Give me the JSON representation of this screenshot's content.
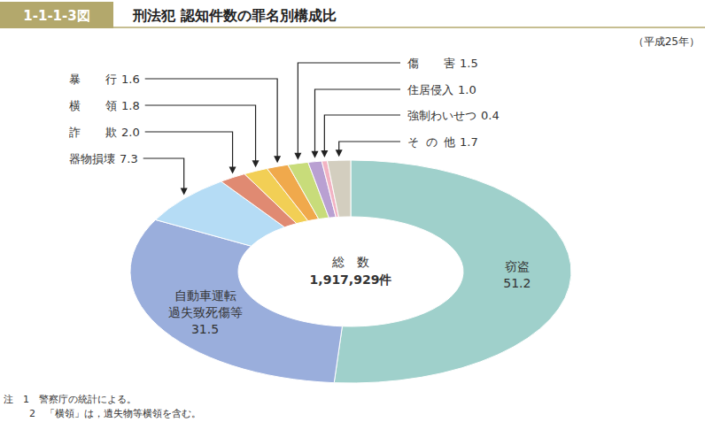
{
  "chart_data": {
    "type": "pie",
    "figure_label": "1-1-1-3図",
    "title": "刑法犯 認知件数の罪名別構成比",
    "subtitle": "（平成25年）",
    "annotations": [
      "総　数",
      "1,917,929件"
    ],
    "notes": [
      "注　1　警察庁の統計による。",
      "2　「横領」は，遺失物等横領を含む。"
    ],
    "categories": [
      "窃盗",
      "自動車運転過失致死傷等",
      "器物損壊",
      "詐欺",
      "横領",
      "暴行",
      "傷害",
      "住居侵入",
      "強制わいせつ",
      "その他"
    ],
    "values": [
      51.2,
      31.5,
      7.3,
      2.0,
      1.8,
      1.6,
      1.5,
      1.0,
      0.4,
      1.7
    ],
    "value_labels": [
      "51.2",
      "31.5",
      "7.3",
      "2.0",
      "1.8",
      "1.6",
      "1.5",
      "1.0",
      "0.4",
      "1.7"
    ],
    "colors": [
      "#9fd0cb",
      "#9aaedc",
      "#b5dcf5",
      "#e08a72",
      "#f2cf55",
      "#f0a94c",
      "#c8dc7a",
      "#b9a0d2",
      "#f2b3c3",
      "#d3cebf"
    ],
    "data_labels": true
  }
}
